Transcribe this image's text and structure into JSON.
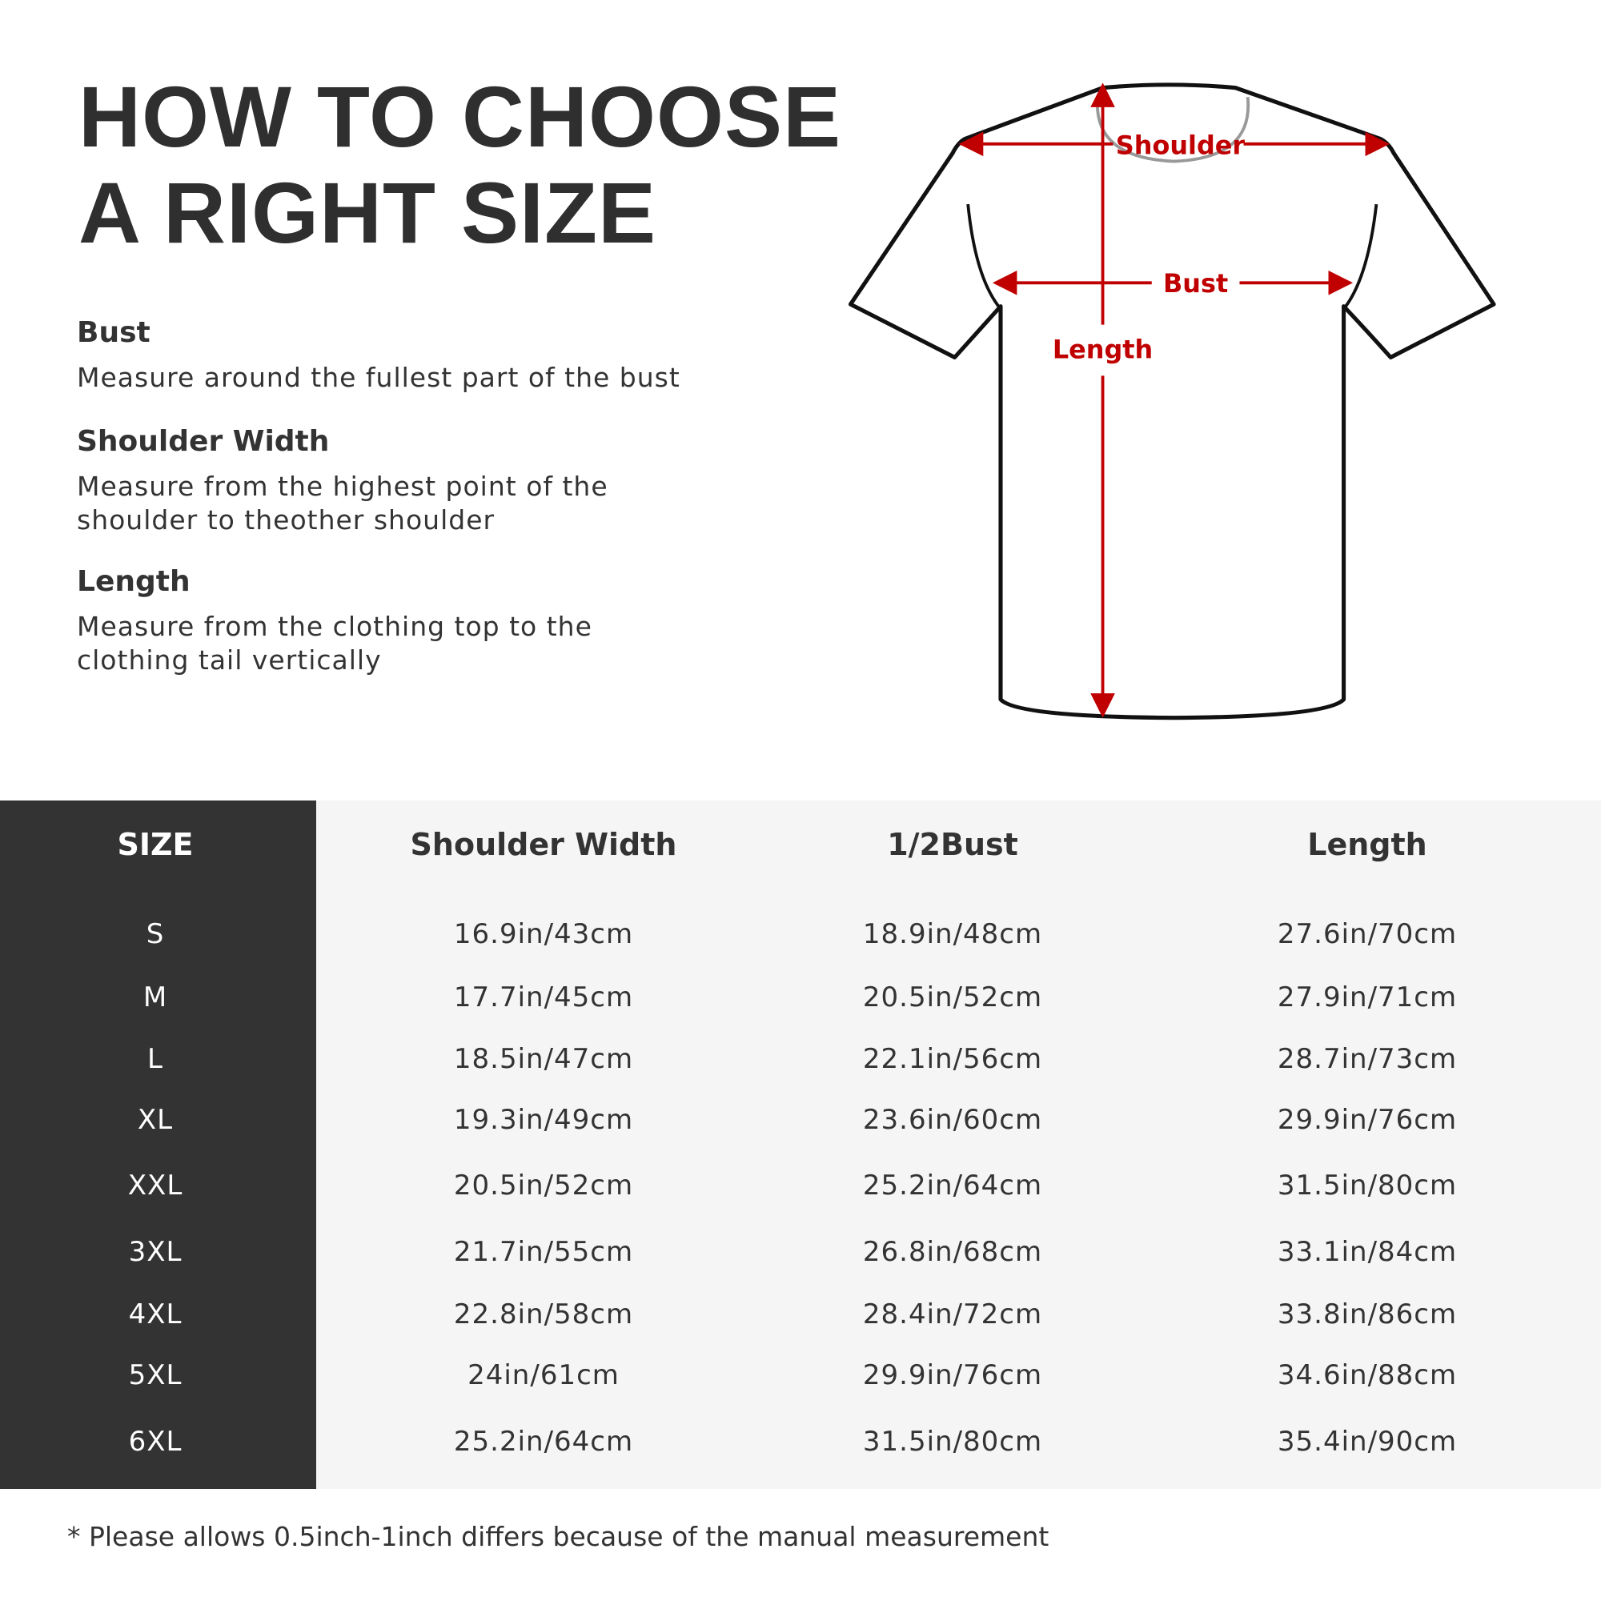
{
  "title": {
    "line1": "HOW TO CHOOSE",
    "line2": "A RIGHT SIZE"
  },
  "guide": [
    {
      "heading": "Bust",
      "lines": [
        "Measure around the fullest part of the bust"
      ]
    },
    {
      "heading": "Shoulder Width",
      "lines": [
        "Measure from the highest point of the",
        "shoulder to theother shoulder"
      ]
    },
    {
      "heading": "Length",
      "lines": [
        "Measure from the clothing top to the",
        "clothing tail vertically"
      ]
    }
  ],
  "diagram": {
    "labels": {
      "shoulder": "Shoulder",
      "bust": "Bust",
      "length": "Length"
    },
    "accent_color": "#c00000"
  },
  "table": {
    "headers": [
      "SIZE",
      "Shoulder Width",
      "1/2Bust",
      "Length"
    ],
    "rows": [
      [
        "S",
        "16.9in/43cm",
        "18.9in/48cm",
        "27.6in/70cm"
      ],
      [
        "M",
        "17.7in/45cm",
        "20.5in/52cm",
        "27.9in/71cm"
      ],
      [
        "L",
        "18.5in/47cm",
        "22.1in/56cm",
        "28.7in/73cm"
      ],
      [
        "XL",
        "19.3in/49cm",
        "23.6in/60cm",
        "29.9in/76cm"
      ],
      [
        "XXL",
        "20.5in/52cm",
        "25.2in/64cm",
        "31.5in/80cm"
      ],
      [
        "3XL",
        "21.7in/55cm",
        "26.8in/68cm",
        "33.1in/84cm"
      ],
      [
        "4XL",
        "22.8in/58cm",
        "28.4in/72cm",
        "33.8in/86cm"
      ],
      [
        "5XL",
        "24in/61cm",
        "29.9in/76cm",
        "34.6in/88cm"
      ],
      [
        "6XL",
        "25.2in/64cm",
        "31.5in/80cm",
        "35.4in/90cm"
      ]
    ]
  },
  "footer": "* Please allows 0.5inch-1inch differs because of the  manual measurement"
}
